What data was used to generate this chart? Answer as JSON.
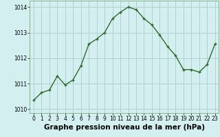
{
  "x": [
    0,
    1,
    2,
    3,
    4,
    5,
    6,
    7,
    8,
    9,
    10,
    11,
    12,
    13,
    14,
    15,
    16,
    17,
    18,
    19,
    20,
    21,
    22,
    23
  ],
  "y": [
    1010.35,
    1010.65,
    1010.75,
    1011.3,
    1010.95,
    1011.15,
    1011.7,
    1012.55,
    1012.75,
    1013.0,
    1013.55,
    1013.8,
    1014.0,
    1013.9,
    1013.55,
    1013.3,
    1012.9,
    1012.45,
    1012.1,
    1011.55,
    1011.55,
    1011.45,
    1011.75,
    1012.55
  ],
  "line_color": "#2d6a2d",
  "marker_color": "#2d6a2d",
  "bg_color": "#d4efef",
  "grid_color": "#b0d0d0",
  "xlabel": "Graphe pression niveau de la mer (hPa)",
  "xlabel_fontsize": 7.5,
  "ylim": [
    1009.85,
    1014.25
  ],
  "xlim": [
    -0.5,
    23.5
  ],
  "yticks": [
    1010,
    1011,
    1012,
    1013,
    1014
  ],
  "xticks": [
    0,
    1,
    2,
    3,
    4,
    5,
    6,
    7,
    8,
    9,
    10,
    11,
    12,
    13,
    14,
    15,
    16,
    17,
    18,
    19,
    20,
    21,
    22,
    23
  ],
  "tick_fontsize": 5.5,
  "line_width": 1.0,
  "marker_size": 3.0,
  "marker_edge_width": 1.0
}
